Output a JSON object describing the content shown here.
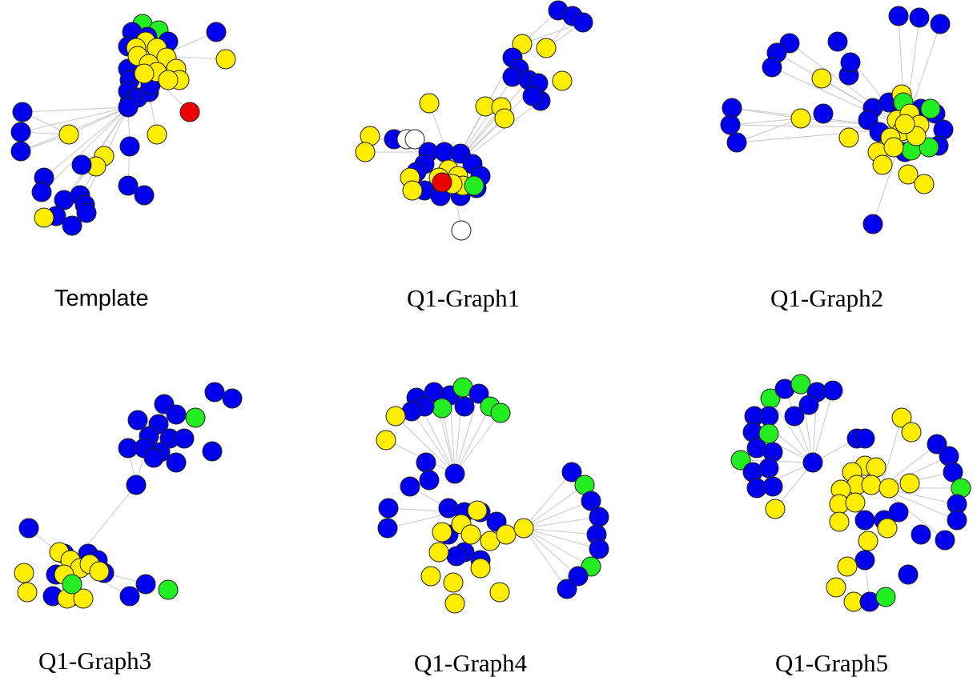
{
  "colors": {
    "blue": "#0000ee",
    "yellow": "#ffee00",
    "green": "#22ee22",
    "red": "#ee0000",
    "white": "#ffffff",
    "edge": "#c8c8c8",
    "stroke": "#222222"
  },
  "panels": [
    {
      "id": "template",
      "caption": "Template"
    },
    {
      "id": "g1",
      "caption": "Q1-Graph1"
    },
    {
      "id": "g2",
      "caption": "Q1-Graph2"
    },
    {
      "id": "g3",
      "caption": "Q1-Graph3"
    },
    {
      "id": "g4",
      "caption": "Q1-Graph4"
    },
    {
      "id": "g5",
      "caption": "Q1-Graph5"
    }
  ]
}
